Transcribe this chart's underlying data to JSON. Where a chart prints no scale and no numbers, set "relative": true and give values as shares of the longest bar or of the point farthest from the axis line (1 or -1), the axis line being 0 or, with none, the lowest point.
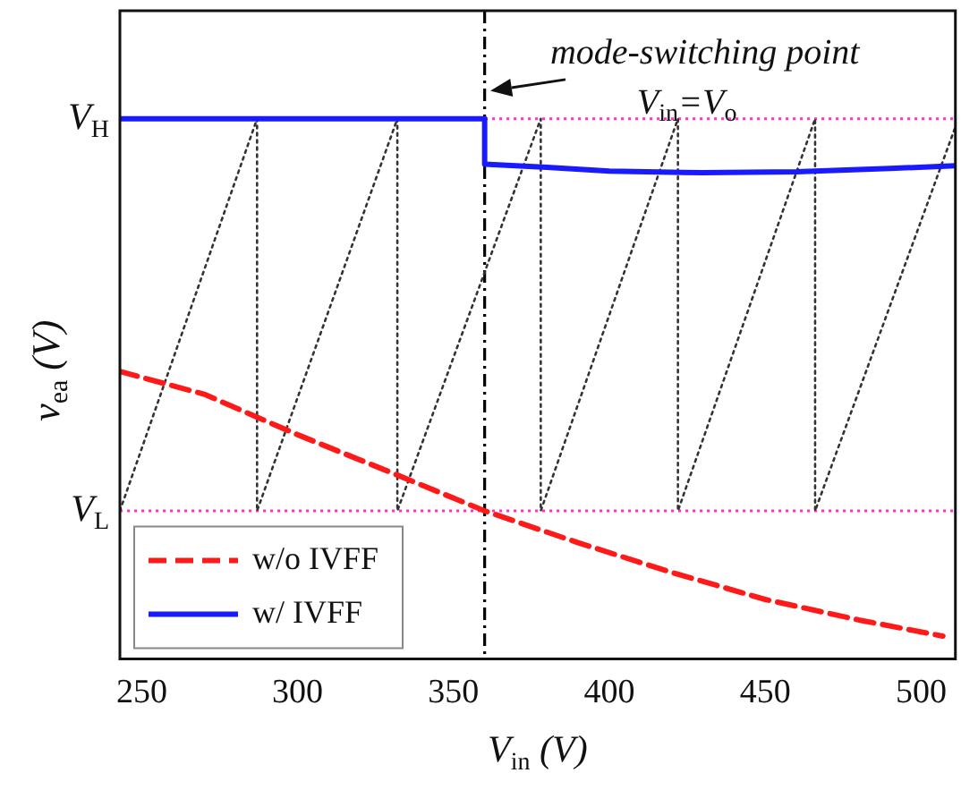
{
  "chart_data": {
    "type": "line",
    "relative": true,
    "xlabel": "V$_{in}$ (V)",
    "ylabel": "v$_{ea}$ (V)",
    "xlim": [
      243,
      511
    ],
    "xticks": [
      250,
      300,
      350,
      400,
      450,
      500
    ],
    "legend": "bottom left",
    "grid": false,
    "series": [
      {
        "name": "w/o IVFF",
        "color": "#ff1a1a",
        "line_style": "dashed",
        "x": [
          243,
          270,
          300,
          330,
          360,
          390,
          420,
          450,
          480,
          507
        ],
        "values": [
          0.532,
          0.49,
          0.415,
          0.345,
          0.274,
          0.215,
          0.16,
          0.11,
          0.072,
          0.042
        ]
      },
      {
        "name": "w/ IVFF",
        "color": "#1a1aff",
        "line_style": "solid",
        "x": [
          243,
          360,
          360,
          380,
          400,
          430,
          460,
          490,
          511
        ],
        "values": [
          1,
          1,
          0.916,
          0.91,
          0.903,
          0.9,
          0.902,
          0.908,
          0.913
        ]
      },
      {
        "color": "#333333",
        "line_style": "dotted",
        "x": [
          243,
          287,
          287,
          332,
          332,
          378,
          378,
          422,
          422,
          466,
          466,
          511
        ],
        "values": [
          0.274,
          1,
          0.274,
          1,
          0.274,
          1,
          0.274,
          1,
          0.274,
          1,
          0.274,
          0.985
        ]
      }
    ],
    "ref_lines": [
      {
        "axis": "y",
        "value": 1,
        "label": "V$_{H}$",
        "color": "#ff33cc",
        "line_style": "dotted"
      },
      {
        "axis": "y",
        "value": 0.274,
        "label": "V$_{L}$",
        "color": "#ff33cc",
        "line_style": "dotted"
      },
      {
        "axis": "x",
        "value": 360,
        "label": "mode-switching point",
        "color": "#000000",
        "line_style": "dashed"
      }
    ],
    "annotations": [
      "V$_{in}$=V$_{o}$"
    ]
  }
}
